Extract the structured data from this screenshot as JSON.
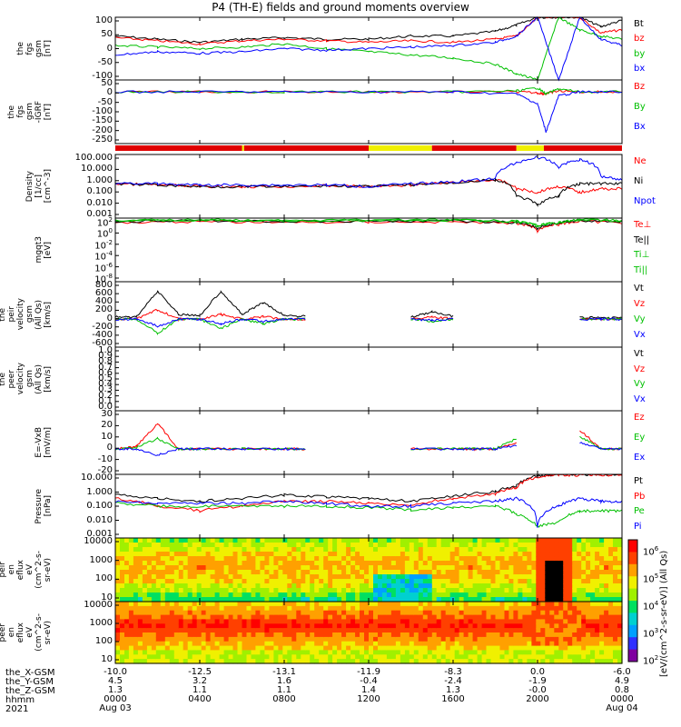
{
  "title": "P4 (TH-E) fields and ground moments overview",
  "panels": [
    {
      "ylabel": [
        "the",
        "fgs",
        "gsm",
        "[nT]"
      ],
      "ticks": [
        "100",
        "50",
        "0",
        "-50",
        "-100"
      ],
      "legend": [
        {
          "text": "Bt",
          "color": "#000000"
        },
        {
          "text": "bz",
          "color": "#ff0000"
        },
        {
          "text": "by",
          "color": "#00c000"
        },
        {
          "text": "bx",
          "color": "#0000ff"
        }
      ]
    },
    {
      "ylabel": [
        "the",
        "fgs",
        "gsm",
        "-IGRF",
        "[nT]"
      ],
      "ticks": [
        "50",
        "0",
        "-50",
        "-100",
        "-150",
        "-200",
        "-250"
      ],
      "legend": [
        {
          "text": "Bz",
          "color": "#ff0000"
        },
        {
          "text": "By",
          "color": "#00c000"
        },
        {
          "text": "Bx",
          "color": "#0000ff"
        }
      ]
    },
    {
      "ylabel": [
        "Density",
        "[1/cc]",
        "[cm^-3]"
      ],
      "ticks": [
        "100.000",
        "10.000",
        "1.000",
        "0.100",
        "0.010",
        "0.001"
      ],
      "legend": [
        {
          "text": "Ne",
          "color": "#ff0000"
        },
        {
          "text": "Ni",
          "color": "#000000"
        },
        {
          "text": "Npot",
          "color": "#0000ff"
        }
      ]
    },
    {
      "ylabel": [
        "mgqt3",
        "[eV]"
      ],
      "ticks": [
        "10^2",
        "10^0",
        "10^-2",
        "10^-4",
        "10^-6",
        "10^-8"
      ],
      "legend": [
        {
          "text": "Te⊥",
          "color": "#ff0000"
        },
        {
          "text": "Te||",
          "color": "#000000"
        },
        {
          "text": "Ti⊥",
          "color": "#00c000"
        },
        {
          "text": "Ti||",
          "color": "#00c000"
        }
      ]
    },
    {
      "ylabel": [
        "the",
        "peir",
        "velocity",
        "gsm",
        "(All Qs)",
        "[km/s]"
      ],
      "ticks": [
        "800",
        "600",
        "400",
        "200",
        "0",
        "-200",
        "-400",
        "-600"
      ],
      "legend": [
        {
          "text": "Vt",
          "color": "#000000"
        },
        {
          "text": "Vz",
          "color": "#ff0000"
        },
        {
          "text": "Vy",
          "color": "#00c000"
        },
        {
          "text": "Vx",
          "color": "#0000ff"
        }
      ]
    },
    {
      "ylabel": [
        "the",
        "peer",
        "velocity",
        "gsm",
        "(All Qs)",
        "[km/s]"
      ],
      "ticks": [
        "1.0",
        "0.9",
        "0.8",
        "0.7",
        "0.6",
        "0.5",
        "0.4",
        "0.3",
        "0.2",
        "0.1",
        "0.0"
      ],
      "legend": [
        {
          "text": "Vt",
          "color": "#000000"
        },
        {
          "text": "Vz",
          "color": "#ff0000"
        },
        {
          "text": "Vy",
          "color": "#00c000"
        },
        {
          "text": "Vx",
          "color": "#0000ff"
        }
      ]
    },
    {
      "ylabel": [
        "E=-VxB",
        "[mV/m]"
      ],
      "ticks": [
        "30",
        "20",
        "10",
        "0",
        "-10",
        "-20"
      ],
      "legend": [
        {
          "text": "Ez",
          "color": "#ff0000"
        },
        {
          "text": "Ey",
          "color": "#00c000"
        },
        {
          "text": "Ex",
          "color": "#0000ff"
        }
      ]
    },
    {
      "ylabel": [
        "Pressure",
        "[nPa]"
      ],
      "ticks": [
        "10.000",
        "1.000",
        "0.100",
        "0.010",
        "0.001"
      ],
      "legend": [
        {
          "text": "Pt",
          "color": "#000000"
        },
        {
          "text": "Pb",
          "color": "#ff0000"
        },
        {
          "text": "Pe",
          "color": "#00c000"
        },
        {
          "text": "Pi",
          "color": "#0000ff"
        }
      ]
    },
    {
      "ylabel": [
        "the",
        "peir",
        "en",
        "eflux",
        "eV",
        "(cm^2-s-",
        "sr-eV)"
      ],
      "ticks": [
        "10000",
        "1000",
        "100",
        "10"
      ],
      "legend": []
    },
    {
      "ylabel": [
        "the",
        "peer",
        "en",
        "eflux",
        "eV",
        "(cm^2-s-",
        "sr-eV)"
      ],
      "ticks": [
        "10000",
        "1000",
        "100",
        "10"
      ],
      "legend": []
    }
  ],
  "colorbar": {
    "labels": [
      "10^6",
      "10^5",
      "10^4",
      "10^3",
      "10^2"
    ],
    "title": "[eV/(cm^2-s-sr-eV)] (All Qs)"
  },
  "footer": {
    "row_labels": [
      "the_X-GSM",
      "the_Y-GSM",
      "the_Z-GSM",
      "hhmm",
      "2021"
    ],
    "columns": [
      {
        "x": "-10.0",
        "y": "4.5",
        "z": "1.3",
        "hhmm": "0000",
        "date": "Aug 03"
      },
      {
        "x": "-12.5",
        "y": "3.2",
        "z": "1.1",
        "hhmm": "0400",
        "date": ""
      },
      {
        "x": "-13.1",
        "y": "1.6",
        "z": "1.1",
        "hhmm": "0800",
        "date": ""
      },
      {
        "x": "-11.9",
        "y": "-0.4",
        "z": "1.4",
        "hhmm": "1200",
        "date": ""
      },
      {
        "x": "-8.3",
        "y": "-2.4",
        "z": "1.3",
        "hhmm": "1600",
        "date": ""
      },
      {
        "x": "0.0",
        "y": "-1.9",
        "z": "-0.0",
        "hhmm": "2000",
        "date": ""
      },
      {
        "x": "-6.0",
        "y": "4.9",
        "z": "0.8",
        "hhmm": "0000",
        "date": "Aug 04"
      }
    ]
  },
  "chart_data": {
    "type": "line",
    "x_unit": "hours since 2021-08-03 00:00 UT",
    "xlim": [
      "2021-08-03 00:00",
      "2021-08-04 00:00"
    ],
    "panels": [
      {
        "name": "fgs gsm",
        "ylim": [
          -100,
          100
        ],
        "x": [
          0,
          2,
          4,
          6,
          8,
          10,
          12,
          14,
          16,
          18,
          19,
          20,
          21,
          22,
          23,
          24
        ],
        "series": [
          {
            "name": "Bt",
            "values": [
              40,
              30,
              20,
              30,
              35,
              30,
              30,
              40,
              40,
              55,
              75,
              100,
              100,
              100,
              70,
              90
            ]
          },
          {
            "name": "bz",
            "values": [
              35,
              25,
              15,
              25,
              30,
              25,
              20,
              25,
              20,
              30,
              40,
              100,
              100,
              100,
              50,
              60
            ]
          },
          {
            "name": "by",
            "values": [
              10,
              5,
              0,
              5,
              15,
              0,
              -10,
              -20,
              -30,
              -50,
              -80,
              -100,
              100,
              60,
              40,
              30
            ]
          },
          {
            "name": "bx",
            "values": [
              -20,
              -10,
              -15,
              -10,
              0,
              -5,
              0,
              5,
              10,
              20,
              40,
              100,
              -100,
              100,
              30,
              10
            ]
          }
        ]
      },
      {
        "name": "fgs gsm -IGRF",
        "ylim": [
          -260,
          60
        ],
        "x": [
          0,
          4,
          8,
          12,
          16,
          19,
          20,
          20.4,
          21,
          22,
          24
        ],
        "series": [
          {
            "name": "Bz",
            "values": [
              0,
              0,
              0,
              0,
              0,
              0,
              -5,
              -10,
              5,
              0,
              0
            ]
          },
          {
            "name": "By",
            "values": [
              0,
              0,
              0,
              0,
              0,
              5,
              20,
              -10,
              15,
              0,
              0
            ]
          },
          {
            "name": "Bx",
            "values": [
              0,
              0,
              0,
              0,
              0,
              -10,
              -60,
              -200,
              -20,
              0,
              0
            ]
          }
        ]
      },
      {
        "name": "Density",
        "ylim": [
          0.001,
          100
        ],
        "log": true,
        "x": [
          0,
          2,
          4,
          6,
          8,
          10,
          12,
          14,
          16,
          18,
          19,
          20,
          21,
          22,
          23,
          24
        ],
        "series": [
          {
            "name": "Ne",
            "values": [
              0.5,
              0.4,
              0.3,
              0.3,
              0.3,
              0.35,
              0.3,
              0.4,
              0.6,
              1.0,
              0.2,
              0.1,
              0.3,
              0.1,
              0.2,
              0.2
            ]
          },
          {
            "name": "Ni",
            "values": [
              0.5,
              0.4,
              0.3,
              0.3,
              0.3,
              0.35,
              0.3,
              0.4,
              0.6,
              1.0,
              0.05,
              0.01,
              0.05,
              0.5,
              0.5,
              0.5
            ]
          },
          {
            "name": "Npot",
            "values": [
              0.6,
              0.5,
              0.4,
              0.4,
              0.4,
              0.4,
              0.3,
              0.5,
              0.7,
              1.2,
              20,
              60,
              10,
              40,
              2,
              1
            ]
          }
        ]
      },
      {
        "name": "mgqt3",
        "ylim": [
          1e-08,
          100
        ],
        "log": true,
        "x": [
          0,
          4,
          8,
          12,
          16,
          19,
          20,
          21,
          22,
          24
        ],
        "series": [
          {
            "name": "Te⊥",
            "values": [
              20,
              30,
              20,
              25,
              25,
              15,
              1,
              10,
              30,
              20
            ]
          },
          {
            "name": "Te||",
            "values": [
              30,
              40,
              30,
              35,
              35,
              20,
              2,
              15,
              40,
              30
            ]
          },
          {
            "name": "Ti⊥",
            "values": [
              40,
              50,
              40,
              45,
              45,
              30,
              5,
              20,
              50,
              40
            ]
          },
          {
            "name": "Ti||",
            "values": [
              40,
              50,
              40,
              45,
              45,
              30,
              5,
              20,
              50,
              40
            ]
          }
        ]
      },
      {
        "name": "peir velocity",
        "ylim": [
          -600,
          800
        ],
        "x": [
          0,
          1,
          2,
          3,
          4,
          5,
          6,
          7,
          8,
          9,
          12,
          13,
          14,
          15,
          16,
          17,
          20,
          21,
          22,
          23,
          24
        ],
        "series": [
          {
            "name": "Vt",
            "values": [
              50,
              50,
              600,
              100,
              80,
              600,
              100,
              350,
              80,
              60,
              null,
              null,
              50,
              150,
              60,
              null,
              null,
              null,
              30,
              30,
              30
            ]
          },
          {
            "name": "Vz",
            "values": [
              0,
              0,
              200,
              0,
              0,
              100,
              0,
              50,
              0,
              0,
              null,
              null,
              0,
              50,
              0,
              null,
              null,
              null,
              0,
              0,
              0
            ]
          },
          {
            "name": "Vy",
            "values": [
              0,
              0,
              -300,
              0,
              0,
              -200,
              0,
              -100,
              0,
              0,
              null,
              null,
              0,
              -50,
              0,
              null,
              null,
              null,
              0,
              0,
              0
            ]
          },
          {
            "name": "Vx",
            "values": [
              0,
              0,
              -150,
              0,
              0,
              -100,
              0,
              -50,
              0,
              0,
              null,
              null,
              0,
              -30,
              0,
              null,
              null,
              null,
              0,
              0,
              0
            ]
          }
        ]
      },
      {
        "name": "peer velocity",
        "ylim": [
          0,
          1
        ],
        "x": [],
        "series": []
      },
      {
        "name": "E=-VxB",
        "ylim": [
          -20,
          30
        ],
        "x": [
          0,
          1,
          2,
          3,
          4,
          6,
          8,
          9,
          12,
          13,
          14,
          16,
          17,
          18,
          19,
          20,
          21,
          22,
          23,
          24
        ],
        "series": [
          {
            "name": "Ez",
            "values": [
              0,
              2,
              20,
              0,
              0,
              0,
              0,
              0,
              null,
              null,
              0,
              0,
              0,
              0,
              5,
              null,
              null,
              15,
              0,
              0
            ]
          },
          {
            "name": "Ey",
            "values": [
              0,
              1,
              8,
              0,
              0,
              0,
              0,
              0,
              null,
              null,
              0,
              0,
              0,
              0,
              8,
              null,
              null,
              10,
              0,
              0
            ]
          },
          {
            "name": "Ex",
            "values": [
              0,
              0,
              -5,
              0,
              0,
              0,
              0,
              0,
              null,
              null,
              0,
              0,
              0,
              0,
              3,
              null,
              null,
              5,
              0,
              0
            ]
          }
        ]
      },
      {
        "name": "Pressure",
        "ylim": [
          0.001,
          10
        ],
        "log": true,
        "x": [
          0,
          2,
          4,
          6,
          8,
          10,
          12,
          14,
          16,
          18,
          19,
          20,
          21,
          22,
          23,
          24
        ],
        "series": [
          {
            "name": "Pt",
            "values": [
              0.5,
              0.3,
              0.2,
              0.3,
              0.5,
              0.4,
              0.3,
              0.2,
              0.4,
              0.8,
              2,
              8,
              10,
              10,
              10,
              10
            ]
          },
          {
            "name": "Pb",
            "values": [
              0.3,
              0.1,
              0.05,
              0.1,
              0.2,
              0.2,
              0.15,
              0.1,
              0.3,
              0.6,
              1.5,
              7,
              9,
              9,
              9,
              10
            ]
          },
          {
            "name": "Pe",
            "values": [
              0.15,
              0.1,
              0.1,
              0.1,
              0.1,
              0.1,
              0.08,
              0.06,
              0.08,
              0.1,
              0.03,
              0.005,
              0.01,
              0.05,
              0.05,
              0.05
            ]
          },
          {
            "name": "Pi",
            "values": [
              0.2,
              0.15,
              0.15,
              0.15,
              0.2,
              0.15,
              0.1,
              0.1,
              0.15,
              0.2,
              0.3,
              0.005,
              0.1,
              0.3,
              0.2,
              0.2
            ]
          }
        ]
      },
      {
        "name": "peir en eflux",
        "type": "heatmap",
        "ylim": [
          10,
          20000
        ],
        "log": true,
        "zlim": [
          100,
          1000000
        ]
      },
      {
        "name": "peer en eflux",
        "type": "heatmap",
        "ylim": [
          10,
          20000
        ],
        "log": true,
        "zlim": [
          100,
          1000000
        ]
      }
    ]
  }
}
